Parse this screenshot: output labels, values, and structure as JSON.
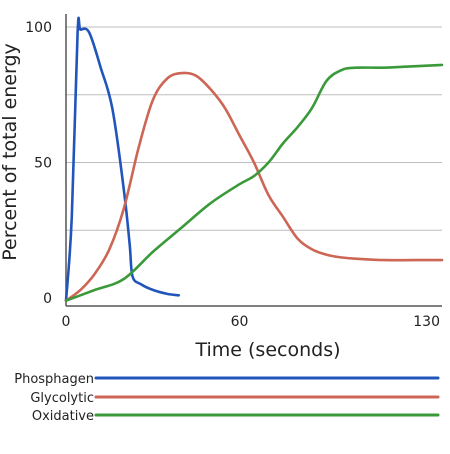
{
  "chart_data": {
    "type": "line",
    "xlabel": "Time (seconds)",
    "ylabel": "Percent of total energy",
    "xlim": [
      0,
      130
    ],
    "ylim": [
      0,
      100
    ],
    "x_ticks": [
      0,
      60,
      130
    ],
    "y_ticks": [
      0,
      50,
      100
    ],
    "grid": "horizontal",
    "legend_position": "bottom",
    "series": [
      {
        "name": "Phosphagen",
        "color": "#2255bb",
        "points": [
          [
            0,
            -1
          ],
          [
            2,
            30
          ],
          [
            4,
            98
          ],
          [
            5,
            99
          ],
          [
            8,
            98
          ],
          [
            12,
            85
          ],
          [
            16,
            70
          ],
          [
            20,
            40
          ],
          [
            22,
            20
          ],
          [
            23,
            8
          ],
          [
            26,
            5
          ],
          [
            30,
            3
          ],
          [
            35,
            1.5
          ],
          [
            39,
            1
          ]
        ]
      },
      {
        "name": "Glycolytic",
        "color": "#cc6655",
        "points": [
          [
            0,
            -1
          ],
          [
            5,
            3
          ],
          [
            10,
            9
          ],
          [
            15,
            18
          ],
          [
            20,
            33
          ],
          [
            25,
            55
          ],
          [
            30,
            73
          ],
          [
            35,
            81
          ],
          [
            40,
            83
          ],
          [
            45,
            82
          ],
          [
            50,
            77
          ],
          [
            55,
            70
          ],
          [
            60,
            60
          ],
          [
            65,
            50
          ],
          [
            70,
            38
          ],
          [
            75,
            30
          ],
          [
            80,
            22
          ],
          [
            85,
            18
          ],
          [
            90,
            16
          ],
          [
            95,
            15
          ],
          [
            100,
            14.5
          ],
          [
            110,
            14
          ],
          [
            120,
            14
          ],
          [
            130,
            14
          ]
        ]
      },
      {
        "name": "Oxidative",
        "color": "#3a9a3a",
        "points": [
          [
            0,
            -1
          ],
          [
            10,
            3
          ],
          [
            20,
            7
          ],
          [
            30,
            17
          ],
          [
            40,
            26
          ],
          [
            50,
            35
          ],
          [
            60,
            42
          ],
          [
            65,
            45
          ],
          [
            70,
            50
          ],
          [
            75,
            57
          ],
          [
            80,
            63
          ],
          [
            85,
            70
          ],
          [
            90,
            80
          ],
          [
            95,
            84
          ],
          [
            100,
            85
          ],
          [
            110,
            85
          ],
          [
            120,
            85.5
          ],
          [
            130,
            86
          ]
        ]
      }
    ]
  }
}
